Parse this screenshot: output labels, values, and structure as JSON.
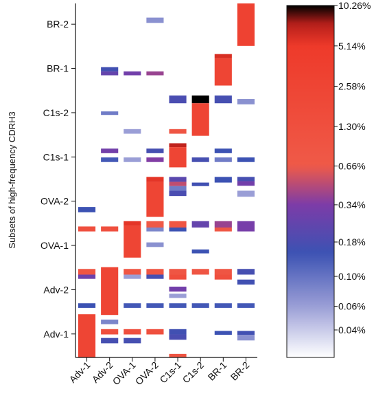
{
  "chart_data": {
    "type": "heatmap",
    "ylabel": "Subsets of high-frequency CDRH3",
    "columns": [
      "Adv-1",
      "Adv-2",
      "OVA-1",
      "OVA-2",
      "C1s-1",
      "C1s-2",
      "BR-1",
      "BR-2"
    ],
    "row_groups": [
      "BR-2",
      "BR-1",
      "C1s-2",
      "C1s-1",
      "OVA-2",
      "OVA-1",
      "Adv-2",
      "Adv-1"
    ],
    "colorbar": {
      "scale": "log",
      "ticks": [
        "10.26%",
        "5.14%",
        "2.58%",
        "1.30%",
        "0.66%",
        "0.34%",
        "0.18%",
        "0.10%",
        "0.06%",
        "0.04%"
      ],
      "tick_values": [
        10.26,
        5.14,
        2.58,
        1.3,
        0.66,
        0.34,
        0.18,
        0.1,
        0.06,
        0.04
      ],
      "min": 0.025,
      "max": 10.26,
      "stops": [
        {
          "v": 0.025,
          "color": "#ffffff"
        },
        {
          "v": 0.06,
          "color": "#9a9ed6"
        },
        {
          "v": 0.15,
          "color": "#3c52b3"
        },
        {
          "v": 0.34,
          "color": "#7c3ca8"
        },
        {
          "v": 0.66,
          "color": "#ef5a48"
        },
        {
          "v": 5.14,
          "color": "#ee3a2a"
        },
        {
          "v": 7.5,
          "color": "#b61e1a"
        },
        {
          "v": 10.26,
          "color": "#000000"
        }
      ]
    },
    "row_range": [
      0,
      100
    ],
    "cells": [
      {
        "col": "BR-2",
        "r": [
          0,
          12
        ],
        "value": 3.0
      },
      {
        "col": "OVA-2",
        "r": [
          4,
          5.5
        ],
        "value": 0.07
      },
      {
        "col": "BR-1",
        "r": [
          14.3,
          15.5
        ],
        "value": 6.0
      },
      {
        "col": "BR-1",
        "r": [
          15.5,
          23.2
        ],
        "value": 2.6
      },
      {
        "col": "Adv-2",
        "r": [
          18,
          19.2
        ],
        "value": 0.16
      },
      {
        "col": "Adv-2",
        "r": [
          19.2,
          20.3
        ],
        "value": 0.25
      },
      {
        "col": "OVA-1",
        "r": [
          19.2,
          20.3
        ],
        "value": 0.3
      },
      {
        "col": "OVA-2",
        "r": [
          19.2,
          20.3
        ],
        "value": 0.4
      },
      {
        "col": "C1s-1",
        "r": [
          26,
          28.2
        ],
        "value": 0.18
      },
      {
        "col": "C1s-2",
        "r": [
          26,
          28.2
        ],
        "value": 10.26
      },
      {
        "col": "BR-1",
        "r": [
          26,
          28.2
        ],
        "value": 0.17
      },
      {
        "col": "BR-2",
        "r": [
          27,
          28.5
        ],
        "value": 0.07
      },
      {
        "col": "C1s-2",
        "r": [
          28.2,
          37.4
        ],
        "value": 2.6
      },
      {
        "col": "Adv-2",
        "r": [
          30.5,
          31.5
        ],
        "value": 0.09
      },
      {
        "col": "OVA-1",
        "r": [
          35.5,
          36.8
        ],
        "value": 0.06
      },
      {
        "col": "C1s-1",
        "r": [
          35.5,
          36.8
        ],
        "value": 0.9
      },
      {
        "col": "C1s-1",
        "r": [
          39.5,
          40.6
        ],
        "value": 7.0
      },
      {
        "col": "C1s-1",
        "r": [
          40.6,
          46.3
        ],
        "value": 2.6
      },
      {
        "col": "Adv-2",
        "r": [
          41,
          42.3
        ],
        "value": 0.3
      },
      {
        "col": "OVA-2",
        "r": [
          41,
          42.3
        ],
        "value": 0.17
      },
      {
        "col": "BR-1",
        "r": [
          41,
          42.3
        ],
        "value": 0.15
      },
      {
        "col": "Adv-2",
        "r": [
          43.5,
          44.8
        ],
        "value": 0.14
      },
      {
        "col": "OVA-1",
        "r": [
          43.5,
          44.8
        ],
        "value": 0.06
      },
      {
        "col": "OVA-2",
        "r": [
          43.5,
          44.8
        ],
        "value": 0.35
      },
      {
        "col": "C1s-2",
        "r": [
          43.5,
          44.8
        ],
        "value": 0.17
      },
      {
        "col": "BR-1",
        "r": [
          43.5,
          44.8
        ],
        "value": 0.09
      },
      {
        "col": "BR-2",
        "r": [
          43.5,
          44.8
        ],
        "value": 0.15
      },
      {
        "col": "OVA-2",
        "r": [
          49,
          50.4
        ],
        "value": 5.5
      },
      {
        "col": "OVA-2",
        "r": [
          50.4,
          60.3
        ],
        "value": 2.6
      },
      {
        "col": "C1s-1",
        "r": [
          49,
          50.4
        ],
        "value": 0.22
      },
      {
        "col": "C1s-1",
        "r": [
          50.4,
          51.6
        ],
        "value": 0.5
      },
      {
        "col": "C1s-2",
        "r": [
          50.6,
          51.6
        ],
        "value": 0.16
      },
      {
        "col": "BR-1",
        "r": [
          49,
          50.6
        ],
        "value": 0.15
      },
      {
        "col": "BR-2",
        "r": [
          49,
          50.2
        ],
        "value": 0.17
      },
      {
        "col": "BR-2",
        "r": [
          50.2,
          51.5
        ],
        "value": 0.3
      },
      {
        "col": "C1s-1",
        "r": [
          51.6,
          52.9
        ],
        "value": 0.09
      },
      {
        "col": "C1s-1",
        "r": [
          52.9,
          54.4
        ],
        "value": 0.18
      },
      {
        "col": "BR-2",
        "r": [
          52.9,
          54.6
        ],
        "value": 0.06
      },
      {
        "col": "Adv-1",
        "r": [
          57.5,
          59
        ],
        "value": 0.15
      },
      {
        "col": "Adv-1",
        "r": [
          63,
          64.4
        ],
        "value": 1.3
      },
      {
        "col": "Adv-2",
        "r": [
          63,
          64.4
        ],
        "value": 1.3
      },
      {
        "col": "OVA-1",
        "r": [
          61.5,
          62.8
        ],
        "value": 5.5
      },
      {
        "col": "OVA-1",
        "r": [
          62.8,
          71.8
        ],
        "value": 2.6
      },
      {
        "col": "OVA-2",
        "r": [
          61.5,
          63.3
        ],
        "value": 0.7
      },
      {
        "col": "OVA-2",
        "r": [
          63.3,
          64.4
        ],
        "value": 0.08
      },
      {
        "col": "C1s-1",
        "r": [
          61.5,
          63.3
        ],
        "value": 0.9
      },
      {
        "col": "C1s-1",
        "r": [
          63.3,
          64.4
        ],
        "value": 0.15
      },
      {
        "col": "C1s-2",
        "r": [
          61.5,
          63.3
        ],
        "value": 0.25
      },
      {
        "col": "BR-1",
        "r": [
          61.5,
          63.3
        ],
        "value": 0.4
      },
      {
        "col": "BR-1",
        "r": [
          63.3,
          64.4
        ],
        "value": 0.8
      },
      {
        "col": "BR-2",
        "r": [
          61.5,
          64.4
        ],
        "value": 0.32
      },
      {
        "col": "OVA-2",
        "r": [
          67.5,
          68.8
        ],
        "value": 0.07
      },
      {
        "col": "C1s-2",
        "r": [
          69.5,
          70.6
        ],
        "value": 0.15
      },
      {
        "col": "Adv-2",
        "r": [
          74.5,
          88
        ],
        "value": 2.6
      },
      {
        "col": "Adv-1",
        "r": [
          75,
          76.6
        ],
        "value": 0.9
      },
      {
        "col": "Adv-1",
        "r": [
          76.6,
          77.8
        ],
        "value": 0.28
      },
      {
        "col": "OVA-1",
        "r": [
          75,
          76.6
        ],
        "value": 0.9
      },
      {
        "col": "OVA-1",
        "r": [
          76.6,
          77.8
        ],
        "value": 0.06
      },
      {
        "col": "OVA-2",
        "r": [
          75,
          76.6
        ],
        "value": 0.9
      },
      {
        "col": "OVA-2",
        "r": [
          76.6,
          77.8
        ],
        "value": 0.17
      },
      {
        "col": "C1s-1",
        "r": [
          75,
          76.6
        ],
        "value": 0.9
      },
      {
        "col": "C1s-1",
        "r": [
          76.6,
          78
        ],
        "value": 1.5
      },
      {
        "col": "C1s-2",
        "r": [
          75,
          76.6
        ],
        "value": 0.9
      },
      {
        "col": "BR-1",
        "r": [
          75,
          76.6
        ],
        "value": 0.9
      },
      {
        "col": "BR-1",
        "r": [
          76.6,
          78
        ],
        "value": 1.3
      },
      {
        "col": "BR-2",
        "r": [
          75,
          76.6
        ],
        "value": 0.17
      },
      {
        "col": "BR-2",
        "r": [
          78,
          79.4
        ],
        "value": 0.16
      },
      {
        "col": "C1s-1",
        "r": [
          80,
          81.4
        ],
        "value": 0.3
      },
      {
        "col": "C1s-1",
        "r": [
          82,
          83.2
        ],
        "value": 0.06
      },
      {
        "col": "Adv-1",
        "r": [
          84.7,
          86
        ],
        "value": 0.15
      },
      {
        "col": "OVA-1",
        "r": [
          84.7,
          86
        ],
        "value": 0.14
      },
      {
        "col": "OVA-2",
        "r": [
          84.7,
          86
        ],
        "value": 0.14
      },
      {
        "col": "C1s-1",
        "r": [
          84.7,
          86
        ],
        "value": 0.14
      },
      {
        "col": "C1s-2",
        "r": [
          84.7,
          86
        ],
        "value": 0.14
      },
      {
        "col": "BR-1",
        "r": [
          84.7,
          86
        ],
        "value": 0.14
      },
      {
        "col": "BR-2",
        "r": [
          84.7,
          86
        ],
        "value": 0.14
      },
      {
        "col": "Adv-1",
        "r": [
          87.8,
          100
        ],
        "value": 2.6
      },
      {
        "col": "Adv-2",
        "r": [
          89.3,
          90.6
        ],
        "value": 0.08
      },
      {
        "col": "Adv-2",
        "r": [
          92,
          93.5
        ],
        "value": 1.3
      },
      {
        "col": "OVA-1",
        "r": [
          92,
          93.5
        ],
        "value": 1.3
      },
      {
        "col": "OVA-2",
        "r": [
          92,
          93.5
        ],
        "value": 1.3
      },
      {
        "col": "C1s-1",
        "r": [
          92,
          93.5
        ],
        "value": 0.16
      },
      {
        "col": "C1s-1",
        "r": [
          93.5,
          95
        ],
        "value": 0.18
      },
      {
        "col": "Adv-2",
        "r": [
          94.5,
          96
        ],
        "value": 0.17
      },
      {
        "col": "OVA-1",
        "r": [
          94.5,
          96
        ],
        "value": 0.17
      },
      {
        "col": "BR-1",
        "r": [
          92.5,
          93.6
        ],
        "value": 0.15
      },
      {
        "col": "BR-2",
        "r": [
          92.5,
          93.6
        ],
        "value": 0.16
      },
      {
        "col": "BR-2",
        "r": [
          93.6,
          95.2
        ],
        "value": 0.07
      },
      {
        "col": "C1s-1",
        "r": [
          99,
          100
        ],
        "value": 1.0
      }
    ]
  }
}
